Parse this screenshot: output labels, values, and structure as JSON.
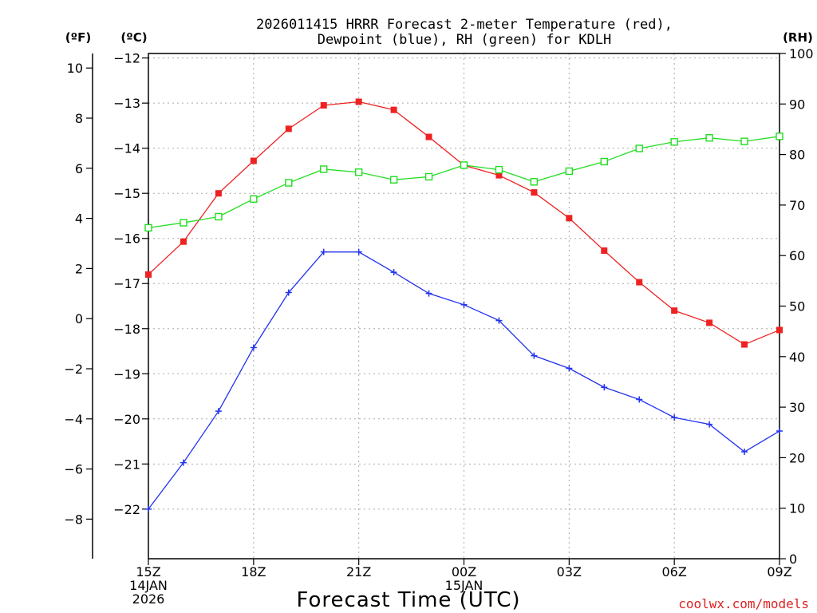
{
  "chart_data": {
    "type": "line",
    "title_line1": "2026011415 HRRR Forecast 2-meter Temperature (red),",
    "title_line2": "Dewpoint (blue), RH (green) for KDLH",
    "xlabel": "Forecast Time (UTC)",
    "unit_labels": {
      "fahrenheit": "(ºF)",
      "celsius": "(ºC)",
      "rh": "(RH)"
    },
    "watermark": "coolwx.com/models",
    "x_hours": [
      0,
      1,
      2,
      3,
      4,
      5,
      6,
      7,
      8,
      9,
      10,
      11,
      12,
      13,
      14,
      15,
      16,
      17,
      18
    ],
    "x_ticks": [
      {
        "hour": 0,
        "lines": [
          "15Z",
          "14JAN",
          "2026"
        ]
      },
      {
        "hour": 3,
        "lines": [
          "18Z"
        ]
      },
      {
        "hour": 6,
        "lines": [
          "21Z"
        ]
      },
      {
        "hour": 9,
        "lines": [
          "00Z",
          "15JAN"
        ]
      },
      {
        "hour": 12,
        "lines": [
          "03Z"
        ]
      },
      {
        "hour": 15,
        "lines": [
          "06Z"
        ]
      },
      {
        "hour": 18,
        "lines": [
          "09Z"
        ]
      }
    ],
    "celsius_axis": {
      "range": [
        -23.1,
        -11.9
      ],
      "ticks": [
        -12,
        -13,
        -14,
        -15,
        -16,
        -17,
        -18,
        -19,
        -20,
        -21,
        -22
      ]
    },
    "fahrenheit_axis": {
      "ticks": [
        10,
        8,
        6,
        4,
        2,
        0,
        -2,
        -4,
        -6,
        -8
      ]
    },
    "rh_axis": {
      "range": [
        0,
        100
      ],
      "ticks": [
        100,
        90,
        80,
        70,
        60,
        50,
        40,
        30,
        20,
        10,
        0
      ]
    },
    "series": [
      {
        "name": "Temperature",
        "axis": "celsius",
        "color": "#ee2222",
        "marker": "filled-square",
        "values": [
          -16.8,
          -16.07,
          -15.0,
          -14.28,
          -13.57,
          -13.05,
          -12.97,
          -13.15,
          -13.75,
          -14.38,
          -14.6,
          -14.98,
          -15.55,
          -16.27,
          -16.97,
          -17.6,
          -17.87,
          -18.35,
          -18.03
        ]
      },
      {
        "name": "Dewpoint",
        "axis": "celsius",
        "color": "#2233ee",
        "marker": "plus",
        "values": [
          -22.0,
          -20.97,
          -19.83,
          -18.42,
          -17.2,
          -16.3,
          -16.3,
          -16.75,
          -17.22,
          -17.47,
          -17.82,
          -18.6,
          -18.88,
          -19.3,
          -19.57,
          -19.97,
          -20.12,
          -20.73,
          -20.27
        ]
      },
      {
        "name": "RH",
        "axis": "rh",
        "color": "#22dd22",
        "marker": "open-square",
        "values": [
          65.5,
          66.5,
          67.7,
          71.2,
          74.4,
          77.1,
          76.5,
          75.0,
          75.6,
          77.9,
          77.0,
          74.6,
          76.7,
          78.6,
          81.2,
          82.5,
          83.3,
          82.6,
          83.6
        ]
      }
    ]
  }
}
